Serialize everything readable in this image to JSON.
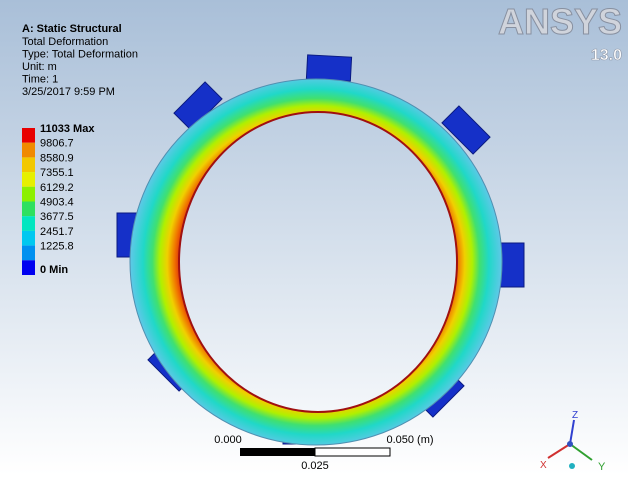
{
  "header": {
    "title": "A: Static Structural",
    "lines": [
      "Total Deformation",
      "Type: Total Deformation",
      "Unit: m",
      "Time: 1",
      "3/25/2017 9:59 PM"
    ]
  },
  "legend": {
    "labels": [
      "11033 Max",
      "9806.7",
      "8580.9",
      "7355.1",
      "6129.2",
      "4903.4",
      "3677.5",
      "2451.7",
      "1225.8",
      "0 Min"
    ],
    "colors": [
      "#e80000",
      "#f08a00",
      "#f2c800",
      "#e6f000",
      "#8cf000",
      "#2ee060",
      "#00e6c0",
      "#00c8f0",
      "#0090f0",
      "#0000f0"
    ]
  },
  "logo": {
    "brand": "ANSYS",
    "version": "13.0"
  },
  "scale_bar": {
    "left": "0.000",
    "right": "0.050 (m)",
    "middle": "0.025"
  },
  "triad": {
    "x": "X",
    "y": "Y",
    "z": "Z"
  }
}
